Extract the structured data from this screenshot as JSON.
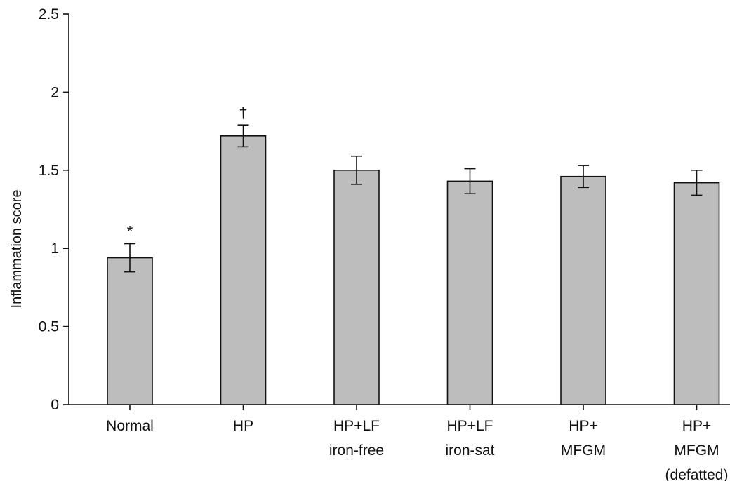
{
  "chart_data": {
    "type": "bar",
    "title": "",
    "xlabel": "",
    "ylabel": "Inflammation score",
    "ylim": [
      0,
      2.5
    ],
    "yticks": [
      "0",
      "0.5",
      "1",
      "1.5",
      "2",
      "2.5"
    ],
    "grid": false,
    "categories": [
      [
        "Normal"
      ],
      [
        "HP"
      ],
      [
        "HP+LF",
        "iron-free"
      ],
      [
        "HP+LF",
        "iron-sat"
      ],
      [
        "HP+",
        "MFGM"
      ],
      [
        "HP+",
        "MFGM",
        "(defatted)"
      ]
    ],
    "values": [
      0.94,
      1.72,
      1.5,
      1.43,
      1.46,
      1.42
    ],
    "errors": [
      0.09,
      0.07,
      0.09,
      0.08,
      0.07,
      0.08
    ],
    "annotations": [
      "*",
      "†",
      "",
      "",
      "",
      ""
    ],
    "colors": {
      "bar": "#bdbdbd",
      "stroke": "#111111"
    }
  }
}
